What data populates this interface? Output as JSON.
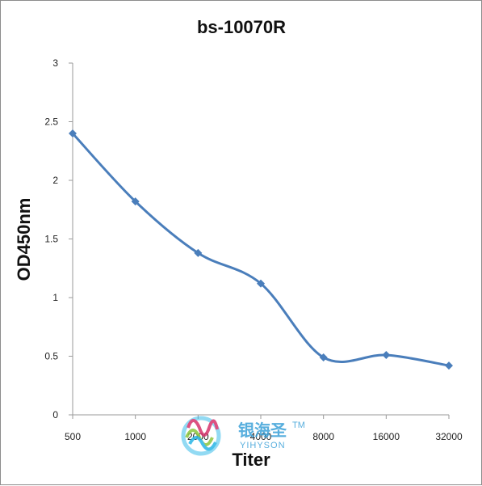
{
  "chart_data": {
    "type": "line",
    "title": "bs-10070R",
    "xlabel": "Titer",
    "ylabel": "OD450nm",
    "categories": [
      "500",
      "1000",
      "2000",
      "4000",
      "8000",
      "16000",
      "32000"
    ],
    "series": [
      {
        "values": [
          2.4,
          1.82,
          1.38,
          1.12,
          0.49,
          0.51,
          0.42
        ],
        "color": "#4a7ebb"
      }
    ],
    "ylim": [
      0,
      3
    ],
    "yticks": [
      "0",
      "0.5",
      "1",
      "1.5",
      "2",
      "2.5",
      "3"
    ],
    "grid": false,
    "legend": "none",
    "marker": "diamond",
    "smooth": true
  },
  "watermark": {
    "brand_cn": "银海圣",
    "brand_en": "YIHYSON",
    "trademark": "TM",
    "colors": {
      "cyan": "#29b6e6",
      "magenta": "#d6336c",
      "green": "#8cc63f",
      "text": "#3aa0d8"
    }
  }
}
